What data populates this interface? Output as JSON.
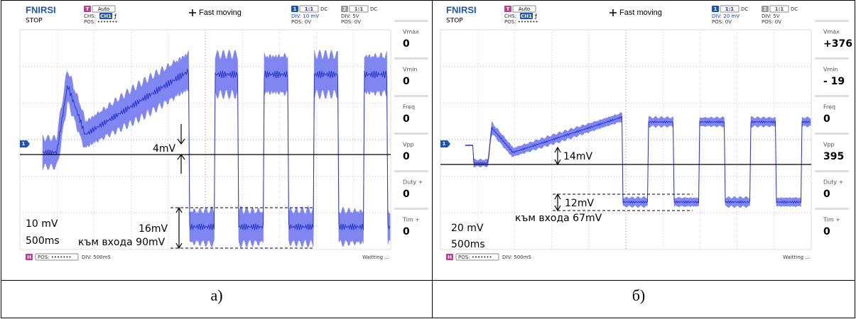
{
  "panels": [
    {
      "brand": "FNIRSI",
      "state": "STOP",
      "trigger": {
        "badge": "T",
        "mode": "Auto",
        "chs": "CHS:",
        "ch": "CH1",
        "pos": "POS: •••••••"
      },
      "move": "Fast moving",
      "ch1": {
        "badge": "1",
        "probe": "1:1",
        "coupling": "DC",
        "div": "DIV:  10 mV",
        "pos": "POS: 0V"
      },
      "ch2": {
        "badge": "2",
        "probe": "1:1",
        "coupling": "DC",
        "div": "DIV:  5V",
        "pos": "POS: 0V"
      },
      "measurements": [
        {
          "label": "Vmax",
          "value": "0"
        },
        {
          "label": "Vmin",
          "value": "0"
        },
        {
          "label": "Freq",
          "value": "0"
        },
        {
          "label": "Vpp",
          "value": "0"
        },
        {
          "label": "Duty +",
          "value": "0"
        },
        {
          "label": "Tim +",
          "value": "0"
        }
      ],
      "marker": "1",
      "footer": {
        "badge": "H",
        "pos": "POS: •••••••",
        "div": "DIV: 500mS",
        "status": "Waitting ..."
      },
      "annotations": {
        "delta_top": "4mV",
        "delta_bottom": "16mV",
        "input": "към входа 90mV",
        "scale": "10 mV",
        "time": "500ms"
      },
      "caption": "а)"
    },
    {
      "brand": "FNIRSI",
      "state": "STOP",
      "trigger": {
        "badge": "T",
        "mode": "Auto",
        "chs": "CHS:",
        "ch": "CH1",
        "pos": "POS: •••••••"
      },
      "move": "Fast moving",
      "ch1": {
        "badge": "1",
        "probe": "1:1",
        "coupling": "DC",
        "div": "DIV:  20 mV",
        "pos": "POS: 0V"
      },
      "ch2": {
        "badge": "2",
        "probe": "1:1",
        "coupling": "DC",
        "div": "DIV:  5V",
        "pos": "POS: 0V"
      },
      "measurements": [
        {
          "label": "Vmax",
          "value": "+376"
        },
        {
          "label": "Vmin",
          "value": "- 19"
        },
        {
          "label": "Freq",
          "value": "0"
        },
        {
          "label": "Vpp",
          "value": "395"
        },
        {
          "label": "Duty +",
          "value": "0"
        },
        {
          "label": "Tim +",
          "value": "0"
        }
      ],
      "marker": "1",
      "footer": {
        "badge": "H",
        "pos": "POS: •••••••",
        "div": "DIV: 500mS",
        "status": "Waitting ..."
      },
      "annotations": {
        "delta_top": "14mV",
        "delta_bottom": "12mV",
        "input": "към входа 67mV",
        "scale": "20 mV",
        "time": "500ms"
      },
      "caption": "б)"
    }
  ]
}
